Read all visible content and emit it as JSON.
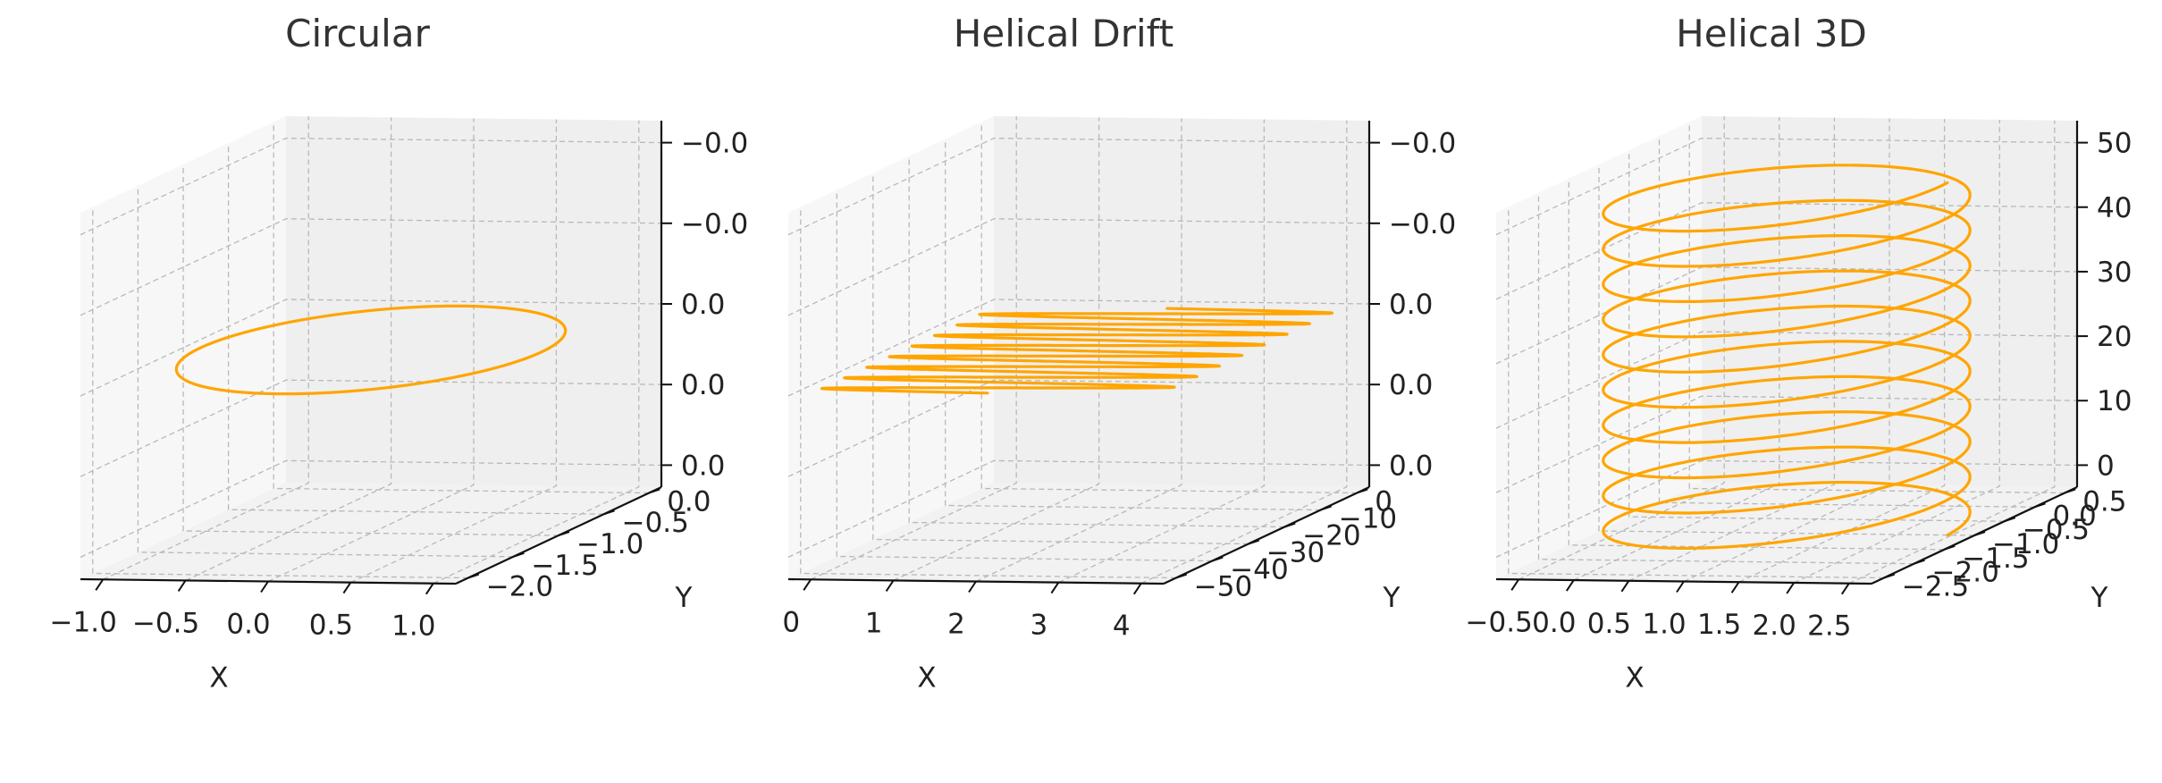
{
  "chart_data": [
    {
      "type": "line3d",
      "title": "Circular",
      "xlabel": "X",
      "ylabel": "Y",
      "xticks": [
        "−1.0",
        "−0.5",
        "0.0",
        "0.5",
        "1.0"
      ],
      "yticks": [
        "0.0",
        "−0.5",
        "−1.0",
        "−1.5",
        "−2.0"
      ],
      "zticks": [
        "0.0",
        "0.0",
        "0.0",
        "−0.0",
        "−0.0"
      ],
      "xlim": [
        -1.1,
        1.1
      ],
      "ylim": [
        -2.1,
        0.1
      ],
      "zlim": [
        -0.06,
        0.06
      ],
      "color": "#FFA500",
      "grid": true,
      "series": [
        {
          "x_expr": "cos(t)",
          "y_expr": "sin(t) - 1",
          "z_expr": "0",
          "t_range": [
            0,
            6.2832
          ]
        }
      ]
    },
    {
      "type": "line3d",
      "title": "Helical Drift",
      "xlabel": "X",
      "ylabel": "Y",
      "xticks": [
        "0",
        "1",
        "2",
        "3",
        "4"
      ],
      "yticks": [
        "0",
        "−10",
        "−20",
        "−30",
        "−40",
        "−50"
      ],
      "zticks": [
        "0.0",
        "0.0",
        "0.0",
        "−0.0",
        "−0.0"
      ],
      "xlim": [
        -0.2,
        4.2
      ],
      "ylim": [
        -53,
        4
      ],
      "zlim": [
        -0.06,
        0.06
      ],
      "color": "#FFA500",
      "grid": true,
      "series": [
        {
          "x_expr": "2 + 2*sin(t)",
          "y_expr": "-t*(50/(16*pi))",
          "z_expr": "0",
          "t_range": [
            0,
            50.27
          ]
        }
      ]
    },
    {
      "type": "line3d",
      "title": "Helical 3D",
      "xlabel": "X",
      "ylabel": "Y",
      "xticks": [
        "−0.5",
        "0.0",
        "0.5",
        "1.0",
        "1.5",
        "2.0",
        "2.5"
      ],
      "yticks": [
        "0.5",
        "0.0",
        "−0.5",
        "−1.0",
        "−1.5",
        "−2.0",
        "−2.5"
      ],
      "zticks": [
        "0",
        "10",
        "20",
        "30",
        "40",
        "50"
      ],
      "xlim": [
        -0.75,
        2.75
      ],
      "ylim": [
        -2.75,
        0.75
      ],
      "zlim": [
        0,
        52
      ],
      "color": "#FFA500",
      "grid": true,
      "series": [
        {
          "x_expr": "1 + 1.5*cos(t)",
          "y_expr": "-1 + 1.5*sin(t)",
          "z_expr": "t*(50/(20*pi))",
          "t_range": [
            0,
            62.83
          ]
        }
      ]
    }
  ]
}
